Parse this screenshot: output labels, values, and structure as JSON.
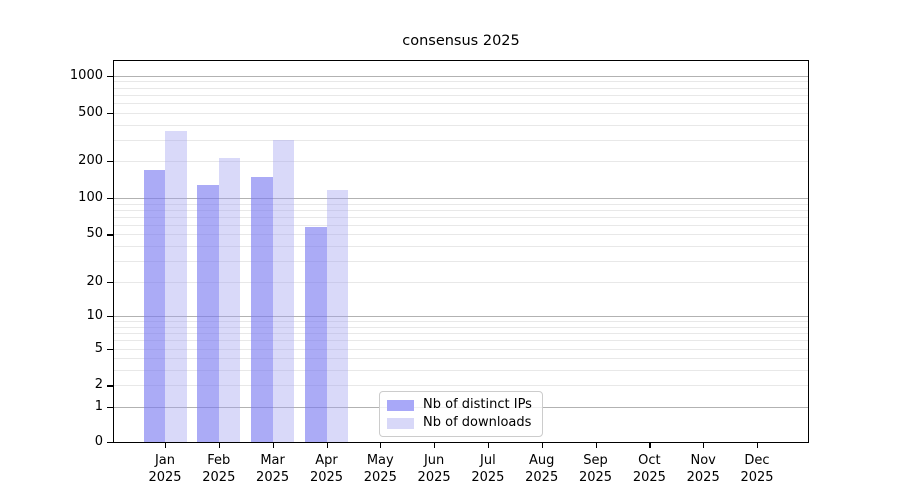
{
  "chart_data": {
    "type": "bar",
    "title": "consensus 2025",
    "y_scale": "log1p",
    "grid": true,
    "legend_position": "lower center inside axes",
    "ylim": [
      0,
      1360
    ],
    "y_ticks": [
      0,
      1,
      2,
      5,
      10,
      20,
      50,
      100,
      200,
      500,
      1000
    ],
    "y_major_gridlines": [
      1,
      10,
      100,
      1000
    ],
    "y_minor_gridlines": [
      2,
      3,
      4,
      5,
      6,
      7,
      8,
      9,
      20,
      30,
      40,
      50,
      60,
      70,
      80,
      90,
      200,
      300,
      400,
      500,
      600,
      700,
      800,
      900
    ],
    "categories": [
      "Jan",
      "Feb",
      "Mar",
      "Apr",
      "May",
      "Jun",
      "Jul",
      "Aug",
      "Sep",
      "Oct",
      "Nov",
      "Dec"
    ],
    "year": "2025",
    "series": [
      {
        "name": "Nb of distinct IPs",
        "color": "rgba(120,120,240,0.62)",
        "swatch_color": "#a8a8f8",
        "values": [
          170,
          128,
          150,
          58,
          0,
          0,
          0,
          0,
          0,
          0,
          0,
          0
        ]
      },
      {
        "name": "Nb of downloads",
        "color": "rgba(160,160,240,0.40)",
        "swatch_color": "#d8d8f8",
        "values": [
          357,
          214,
          298,
          116,
          0,
          0,
          0,
          0,
          0,
          0,
          0,
          0
        ]
      }
    ],
    "colors": {
      "grid_major": "#b2b2b2",
      "grid_minor": "#e8e8e8",
      "axis": "#000000",
      "text": "#000000",
      "background": "#ffffff"
    }
  }
}
